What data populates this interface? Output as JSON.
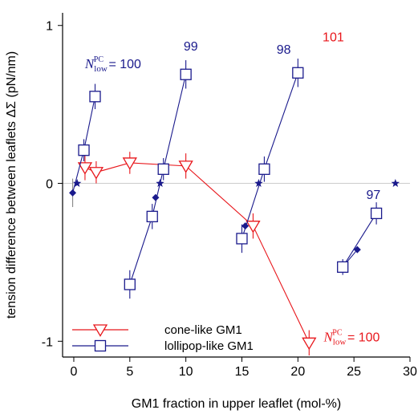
{
  "chart_data": {
    "type": "line",
    "xlabel": "GM1 fraction in upper leaflet (mol-%)",
    "ylabel": "tension difference between leaflets ΔΣ (pN/nm)",
    "xlim": [
      -1,
      30
    ],
    "ylim": [
      -1.1,
      1.08
    ],
    "xticks": [
      0,
      5,
      10,
      15,
      20,
      25,
      30
    ],
    "yticks": [
      -1,
      0,
      1
    ],
    "xtick_labels": [
      "0",
      "5",
      "10",
      "15",
      "20",
      "25",
      "30"
    ],
    "ytick_labels": [
      "-1",
      "0",
      "1"
    ],
    "zero_line": true,
    "colors": {
      "cone": "#e8161b",
      "lollipop": "#1a1a8c"
    },
    "series": [
      {
        "name": "cone-like GM1",
        "color": "#e8161b",
        "marker": "triangle-down",
        "x": [
          1,
          2,
          5,
          10,
          16,
          21
        ],
        "y": [
          0.1,
          0.07,
          0.13,
          0.11,
          -0.27,
          -1.01
        ],
        "err": [
          0.08,
          0.07,
          0.07,
          0.08,
          0.08,
          0.08
        ]
      },
      {
        "name": "lollipop-like GM1",
        "color": "#1a1a8c",
        "marker": "square",
        "segments": [
          {
            "x": [
              0.9,
              1.9
            ],
            "y": [
              0.21,
              0.55
            ],
            "err": [
              0.07,
              0.08
            ]
          },
          {
            "x": [
              5,
              7,
              8,
              10
            ],
            "y": [
              -0.64,
              -0.21,
              0.09,
              0.69
            ],
            "err": [
              0.09,
              0.08,
              0.07,
              0.09
            ]
          },
          {
            "x": [
              15,
              17,
              20
            ],
            "y": [
              -0.35,
              0.09,
              0.7
            ],
            "err": [
              0.09,
              0.08,
              0.09
            ]
          },
          {
            "x": [
              24,
              27
            ],
            "y": [
              -0.53,
              -0.19
            ],
            "err": [
              0.05,
              0.07
            ]
          }
        ]
      }
    ],
    "interpolated_points": {
      "color": "#1a1a8c",
      "x": [
        -0.1,
        7.3,
        15.3,
        25.3
      ],
      "y": [
        -0.06,
        -0.09,
        -0.27,
        -0.42
      ],
      "err": [
        0.09,
        0,
        0,
        0
      ]
    },
    "zero_crossing_points": {
      "color": "#1a1a8c",
      "x": [
        0.3,
        7.7,
        16.5,
        28.7
      ],
      "y": [
        0,
        0,
        0,
        0
      ]
    },
    "annotations": [
      {
        "id": "n100-blue",
        "prefix": "N",
        "sub": "low",
        "sup": "PC",
        "text": " = 100",
        "color": "#1a1a8c",
        "x": 1.0,
        "y": 0.73
      },
      {
        "id": "n99",
        "text": "99",
        "color": "#1a1a8c",
        "x": 9.8,
        "y": 0.84
      },
      {
        "id": "n98",
        "text": "98",
        "color": "#1a1a8c",
        "x": 18.1,
        "y": 0.82
      },
      {
        "id": "n101",
        "text": "101",
        "color": "#e8161b",
        "x": 22.2,
        "y": 0.9
      },
      {
        "id": "n97",
        "text": "97",
        "color": "#1a1a8c",
        "x": 26.1,
        "y": -0.1
      },
      {
        "id": "n100-red",
        "prefix": "N",
        "sub": "low",
        "sup": "PC",
        "text": " = 100",
        "color": "#e8161b",
        "x": 22.3,
        "y": -1.0
      }
    ],
    "legend": {
      "placement": "bottom-left",
      "entries": [
        {
          "label": "cone-like GM1",
          "color": "#e8161b",
          "marker": "triangle-down"
        },
        {
          "label": "lollipop-like GM1",
          "color": "#1a1a8c",
          "marker": "square"
        }
      ]
    }
  }
}
